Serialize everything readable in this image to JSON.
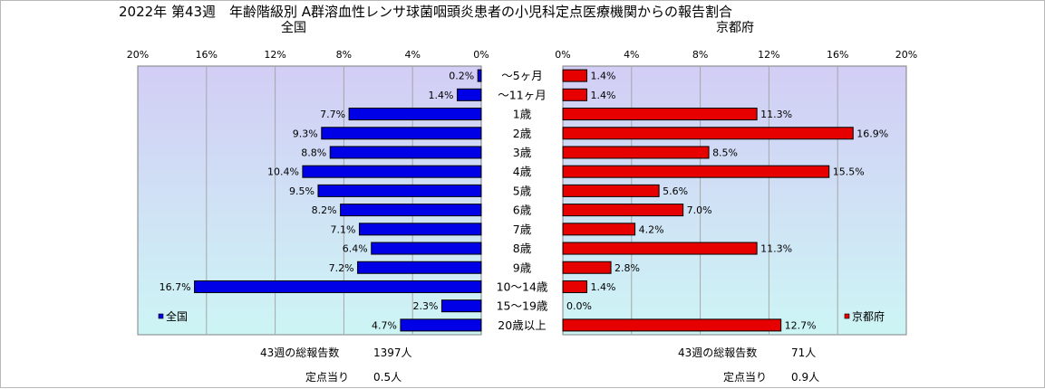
{
  "title": "2022年 第43週　年齢階級別 A群溶血性レンサ球菌咽頭炎患者の小児科定点医療機関からの報告割合",
  "left_panel": {
    "heading": "全国",
    "legend": "全国",
    "total_reports_label": "43週の総報告数",
    "total_reports_value": "1397人",
    "per_site_label": "定点当り",
    "per_site_value": "0.5人"
  },
  "right_panel": {
    "heading": "京都府",
    "legend": "京都府",
    "total_reports_label": "43週の総報告数",
    "total_reports_value": "71人",
    "per_site_label": "定点当り",
    "per_site_value": "0.9人"
  },
  "colors": {
    "national_bar": "#0000e6",
    "kyoto_bar": "#e60000",
    "plot_bg_top": "#d2cdf5",
    "plot_bg_bottom": "#cdf5f5",
    "gridline": "#a6a6a6"
  },
  "chart_data": {
    "type": "bar",
    "orientation": "horizontal",
    "layout": "butterfly",
    "categories": [
      "～5ヶ月",
      "～11ヶ月",
      "1歳",
      "2歳",
      "3歳",
      "4歳",
      "5歳",
      "6歳",
      "7歳",
      "8歳",
      "9歳",
      "10～14歳",
      "15～19歳",
      "20歳以上"
    ],
    "unit": "%",
    "xlim": [
      0,
      20
    ],
    "ticks": [
      0,
      4,
      8,
      12,
      16,
      20
    ],
    "tick_labels": [
      "0%",
      "4%",
      "8%",
      "12%",
      "16%",
      "20%"
    ],
    "grid": true,
    "series": [
      {
        "name": "全国",
        "side": "left",
        "values": [
          0.2,
          1.4,
          7.7,
          9.3,
          8.8,
          10.4,
          9.5,
          8.2,
          7.1,
          6.4,
          7.2,
          16.7,
          2.3,
          4.7
        ],
        "labels": [
          "0.2%",
          "1.4%",
          "7.7%",
          "9.3%",
          "8.8%",
          "10.4%",
          "9.5%",
          "8.2%",
          "7.1%",
          "6.4%",
          "7.2%",
          "16.7%",
          "2.3%",
          "4.7%"
        ]
      },
      {
        "name": "京都府",
        "side": "right",
        "values": [
          1.4,
          1.4,
          11.3,
          16.9,
          8.5,
          15.5,
          5.6,
          7.0,
          4.2,
          11.3,
          2.8,
          1.4,
          0.0,
          12.7
        ],
        "labels": [
          "1.4%",
          "1.4%",
          "11.3%",
          "16.9%",
          "8.5%",
          "15.5%",
          "5.6%",
          "7.0%",
          "4.2%",
          "11.3%",
          "2.8%",
          "1.4%",
          "0.0%",
          "12.7%"
        ]
      }
    ]
  }
}
